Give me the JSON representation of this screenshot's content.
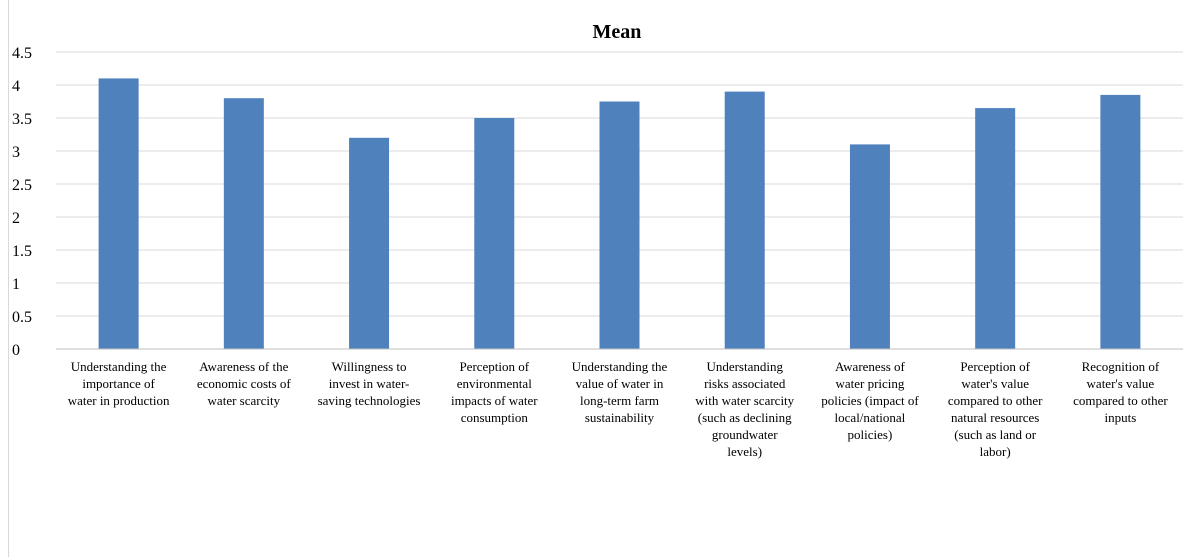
{
  "chart_data": {
    "type": "bar",
    "title": "Mean",
    "xlabel": "",
    "ylabel": "",
    "ylim": [
      0,
      4.5
    ],
    "yticks": [
      "0",
      "0.5",
      "1",
      "1.5",
      "2",
      "2.5",
      "3",
      "3.5",
      "4",
      "4.5"
    ],
    "grid": true,
    "legend": "none",
    "bar_color": "#4F81BD",
    "categories": [
      "Understanding the importance of water in production",
      "Awareness of the economic costs of water scarcity",
      "Willingness to invest in water-saving technologies",
      "Perception of environmental impacts of water consumption",
      "Understanding the value of water in long-term farm sustainability",
      "Understanding risks associated with water scarcity (such as declining groundwater levels)",
      "Awareness of water pricing policies (impact of local/national policies)",
      "Perception of water's value compared to other natural resources (such as land or labor)",
      "Recognition of water's value compared to other inputs"
    ],
    "category_lines": [
      [
        "Understanding the",
        "importance of",
        "water in production"
      ],
      [
        "Awareness of the",
        "economic costs of",
        "water scarcity"
      ],
      [
        "Willingness to",
        "invest in water-",
        "saving technologies"
      ],
      [
        "Perception of",
        "environmental",
        "impacts of water",
        "consumption"
      ],
      [
        "Understanding the",
        "value of water in",
        "long-term farm",
        "sustainability"
      ],
      [
        "Understanding",
        "risks associated",
        "with water scarcity",
        "(such as declining",
        "groundwater",
        "levels)"
      ],
      [
        "Awareness of",
        "water pricing",
        "policies (impact of",
        "local/national",
        "policies)"
      ],
      [
        "Perception of",
        "water's value",
        "compared to other",
        "natural resources",
        "(such as land or",
        "labor)"
      ],
      [
        "Recognition of",
        "water's value",
        "compared to other",
        "inputs"
      ]
    ],
    "values": [
      4.1,
      3.8,
      3.2,
      3.5,
      3.75,
      3.9,
      3.1,
      3.65,
      3.85
    ]
  }
}
